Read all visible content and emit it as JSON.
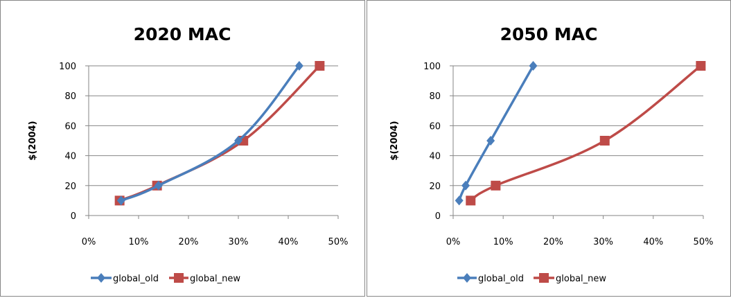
{
  "chart_data": [
    {
      "type": "line",
      "title": "2020 MAC",
      "xlabel": "",
      "ylabel": "$(2004)",
      "xlim": [
        0,
        50
      ],
      "ylim": [
        0,
        100
      ],
      "x_ticks": [
        "0%",
        "10%",
        "20%",
        "30%",
        "40%",
        "50%"
      ],
      "y_ticks": [
        "0",
        "20",
        "40",
        "60",
        "80",
        "100"
      ],
      "grid": "horizontal",
      "legend_position": "bottom",
      "series": [
        {
          "name": "global_old",
          "color": "#4a7ebb",
          "marker": "diamond",
          "x": [
            6.5,
            14,
            30,
            42.2
          ],
          "y": [
            10,
            20,
            50,
            100
          ]
        },
        {
          "name": "global_new",
          "color": "#be4b48",
          "marker": "square",
          "x": [
            6.2,
            13.7,
            31,
            46.3
          ],
          "y": [
            10,
            20,
            50,
            100
          ]
        }
      ]
    },
    {
      "type": "line",
      "title": "2050 MAC",
      "xlabel": "",
      "ylabel": "$(2004)",
      "xlim": [
        0,
        50
      ],
      "ylim": [
        0,
        100
      ],
      "x_ticks": [
        "0%",
        "10%",
        "20%",
        "30%",
        "40%",
        "50%"
      ],
      "y_ticks": [
        "0",
        "20",
        "40",
        "60",
        "80",
        "100"
      ],
      "grid": "horizontal",
      "legend_position": "bottom",
      "series": [
        {
          "name": "global_old",
          "color": "#4a7ebb",
          "marker": "diamond",
          "x": [
            1.2,
            2.5,
            7.5,
            16
          ],
          "y": [
            10,
            20,
            50,
            100
          ]
        },
        {
          "name": "global_new",
          "color": "#be4b48",
          "marker": "square",
          "x": [
            3.5,
            8.5,
            30.3,
            49.5
          ],
          "y": [
            10,
            20,
            50,
            100
          ]
        }
      ]
    }
  ]
}
